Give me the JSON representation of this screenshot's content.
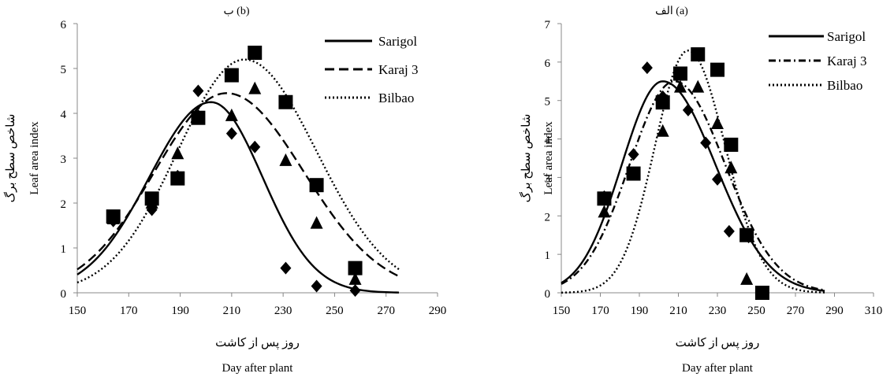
{
  "chart_data": [
    {
      "panel_id": "b",
      "type": "line",
      "title": "ب (b)",
      "xlabel_fa": "روز پس از کاشت",
      "xlabel": "Day after plant",
      "ylabel_fa": "شاخص سطح برگ",
      "ylabel": "Leaf area index",
      "xlim": [
        150,
        290
      ],
      "ylim": [
        0,
        6
      ],
      "x_ticks": [
        150,
        170,
        190,
        210,
        230,
        250,
        270,
        290
      ],
      "y_ticks": [
        0,
        1,
        2,
        3,
        4,
        5,
        6
      ],
      "grid": false,
      "legend_position": "top-right",
      "series": [
        {
          "name": "Sarigol",
          "line_style": "solid",
          "marker": "diamond",
          "curve": {
            "peak": 4.25,
            "peak_day": 202,
            "sigma_left": 24,
            "sigma_right": 20,
            "x_start": 150,
            "x_end": 275
          },
          "points": [
            [
              164,
              1.6
            ],
            [
              179,
              1.85
            ],
            [
              189,
              2.6
            ],
            [
              197,
              4.5
            ],
            [
              210,
              3.55
            ],
            [
              219,
              3.25
            ],
            [
              231,
              0.55
            ],
            [
              243,
              0.15
            ],
            [
              258,
              0.05
            ]
          ]
        },
        {
          "name": "Karaj 3",
          "line_style": "dashed",
          "marker": "triangle",
          "curve": {
            "peak": 4.45,
            "peak_day": 208,
            "sigma_left": 28,
            "sigma_right": 30,
            "x_start": 150,
            "x_end": 275
          },
          "points": [
            [
              164,
              1.65
            ],
            [
              179,
              2.0
            ],
            [
              189,
              3.1
            ],
            [
              197,
              3.95
            ],
            [
              210,
              3.95
            ],
            [
              219,
              4.55
            ],
            [
              231,
              2.95
            ],
            [
              243,
              1.55
            ],
            [
              258,
              0.3
            ]
          ]
        },
        {
          "name": "Bilbao",
          "line_style": "dotted",
          "marker": "square",
          "curve": {
            "peak": 5.2,
            "peak_day": 215,
            "sigma_left": 26,
            "sigma_right": 28,
            "x_start": 150,
            "x_end": 275
          },
          "points": [
            [
              164,
              1.7
            ],
            [
              179,
              2.1
            ],
            [
              189,
              2.55
            ],
            [
              197,
              3.9
            ],
            [
              210,
              4.85
            ],
            [
              219,
              5.35
            ],
            [
              231,
              4.25
            ],
            [
              243,
              2.4
            ],
            [
              258,
              0.55
            ]
          ]
        }
      ]
    },
    {
      "panel_id": "a",
      "type": "line",
      "title": "الف (a)",
      "xlabel_fa": "روز پس از کاشت",
      "xlabel": "Day after plant",
      "ylabel_fa": "شاخص سطح برگ",
      "ylabel": "Leaf area index",
      "xlim": [
        150,
        310
      ],
      "ylim": [
        0,
        7
      ],
      "x_ticks": [
        150,
        170,
        190,
        210,
        230,
        250,
        270,
        290,
        310
      ],
      "y_ticks": [
        0,
        1,
        2,
        3,
        4,
        5,
        6,
        7
      ],
      "grid": false,
      "legend_position": "top-right",
      "series": [
        {
          "name": "Sarigol",
          "line_style": "solid",
          "marker": "diamond",
          "curve": {
            "peak": 5.5,
            "peak_day": 202,
            "sigma_left": 21,
            "sigma_right": 27,
            "x_start": 150,
            "x_end": 285
          },
          "points": [
            [
              172,
              2.5
            ],
            [
              187,
              3.6
            ],
            [
              194,
              5.85
            ],
            [
              202,
              5.1
            ],
            [
              215,
              4.75
            ],
            [
              224,
              3.9
            ],
            [
              230,
              2.95
            ],
            [
              236,
              1.6
            ],
            [
              246,
              1.45
            ]
          ]
        },
        {
          "name": "Karaj 3",
          "line_style": "dashdot",
          "marker": "triangle",
          "curve": {
            "peak": 5.5,
            "peak_day": 208,
            "sigma_left": 23,
            "sigma_right": 26,
            "x_start": 150,
            "x_end": 285
          },
          "points": [
            [
              172,
              2.1
            ],
            [
              187,
              3.1
            ],
            [
              202,
              4.2
            ],
            [
              211,
              5.35
            ],
            [
              220,
              5.35
            ],
            [
              230,
              4.4
            ],
            [
              237,
              3.25
            ],
            [
              245,
              0.35
            ]
          ]
        },
        {
          "name": "Bilbao",
          "line_style": "dotted",
          "marker": "square",
          "curve": {
            "peak": 6.3,
            "peak_day": 215,
            "sigma_left": 17,
            "sigma_right": 19,
            "x_start": 150,
            "x_end": 285
          },
          "points": [
            [
              172,
              2.45
            ],
            [
              187,
              3.1
            ],
            [
              202,
              4.95
            ],
            [
              211,
              5.7
            ],
            [
              220,
              6.2
            ],
            [
              230,
              5.8
            ],
            [
              237,
              3.85
            ],
            [
              245,
              1.5
            ],
            [
              253,
              0.0
            ]
          ]
        }
      ]
    }
  ]
}
